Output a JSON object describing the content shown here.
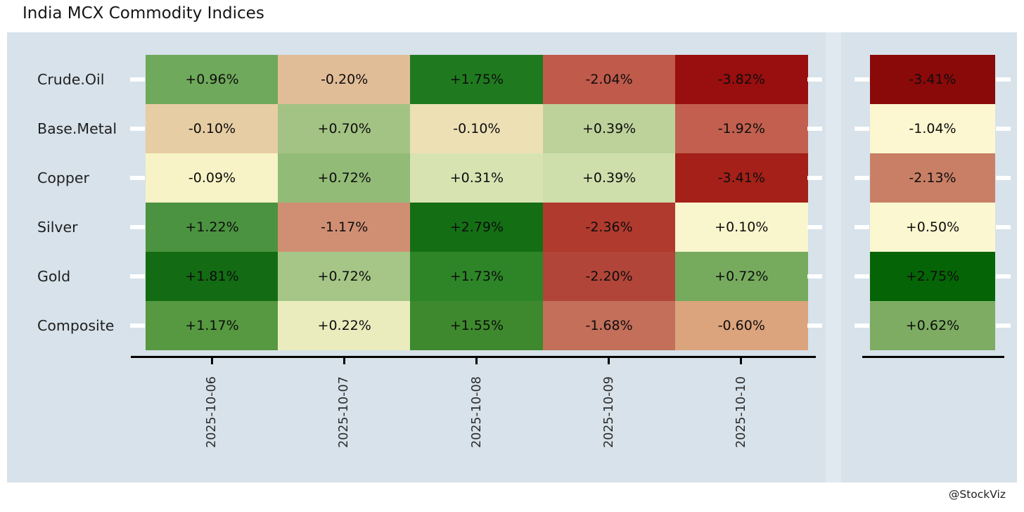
{
  "title": "India MCX Commodity Indices",
  "watermark": "@StockViz",
  "chart_data": {
    "type": "heatmap",
    "title": "India MCX Commodity Indices",
    "columns": [
      "2025-10-06",
      "2025-10-07",
      "2025-10-08",
      "2025-10-09",
      "2025-10-10"
    ],
    "legend": "none",
    "panel_background": "#d7e2ea",
    "rows": [
      {
        "label": "Crude.Oil",
        "values": [
          0.96,
          -0.2,
          1.75,
          -2.04,
          -3.82
        ],
        "cells": [
          {
            "value": "+0.96%",
            "color": "#6fa95b"
          },
          {
            "value": "-0.20%",
            "color": "#e1bd97"
          },
          {
            "value": "+1.75%",
            "color": "#1f7a1f"
          },
          {
            "value": "-2.04%",
            "color": "#c05a4b"
          },
          {
            "value": "-3.82%",
            "color": "#990e0e"
          }
        ],
        "aggregate_value": -3.41,
        "aggregate": {
          "value": "-3.41%",
          "color": "#8a0909"
        }
      },
      {
        "label": "Base.Metal",
        "values": [
          -0.1,
          0.7,
          -0.1,
          0.39,
          -1.92
        ],
        "cells": [
          {
            "value": "-0.10%",
            "color": "#e7cda3"
          },
          {
            "value": "+0.70%",
            "color": "#a3c384"
          },
          {
            "value": "-0.10%",
            "color": "#ede0b5"
          },
          {
            "value": "+0.39%",
            "color": "#bdd29b"
          },
          {
            "value": "-1.92%",
            "color": "#c25f4f"
          }
        ],
        "aggregate_value": -1.04,
        "aggregate": {
          "value": "-1.04%",
          "color": "#fcf7d0"
        }
      },
      {
        "label": "Copper",
        "values": [
          -0.09,
          0.72,
          0.31,
          0.39,
          -3.41
        ],
        "cells": [
          {
            "value": "-0.09%",
            "color": "#f7f3c6"
          },
          {
            "value": "+0.72%",
            "color": "#92bb77"
          },
          {
            "value": "+0.31%",
            "color": "#d8e3b2"
          },
          {
            "value": "+0.39%",
            "color": "#cedfac"
          },
          {
            "value": "-3.41%",
            "color": "#a42019"
          }
        ],
        "aggregate_value": -2.13,
        "aggregate": {
          "value": "-2.13%",
          "color": "#c97f66"
        }
      },
      {
        "label": "Silver",
        "values": [
          1.22,
          -1.17,
          2.79,
          -2.36,
          0.1
        ],
        "cells": [
          {
            "value": "+1.22%",
            "color": "#4b9340"
          },
          {
            "value": "-1.17%",
            "color": "#d08f73"
          },
          {
            "value": "+2.79%",
            "color": "#146f14"
          },
          {
            "value": "-2.36%",
            "color": "#b03a2e"
          },
          {
            "value": "+0.10%",
            "color": "#f9f5cc"
          }
        ],
        "aggregate_value": 0.5,
        "aggregate": {
          "value": "+0.50%",
          "color": "#fbf7d0"
        }
      },
      {
        "label": "Gold",
        "values": [
          1.81,
          0.72,
          1.73,
          -2.2,
          0.72
        ],
        "cells": [
          {
            "value": "+1.81%",
            "color": "#136c13"
          },
          {
            "value": "+0.72%",
            "color": "#a5c686"
          },
          {
            "value": "+1.73%",
            "color": "#2d8527"
          },
          {
            "value": "-2.20%",
            "color": "#b24539"
          },
          {
            "value": "+0.72%",
            "color": "#76ab5e"
          }
        ],
        "aggregate_value": 2.75,
        "aggregate": {
          "value": "+2.75%",
          "color": "#056405"
        }
      },
      {
        "label": "Composite",
        "values": [
          1.17,
          0.22,
          1.55,
          -1.68,
          -0.6
        ],
        "cells": [
          {
            "value": "+1.17%",
            "color": "#569941"
          },
          {
            "value": "+0.22%",
            "color": "#eaecbd"
          },
          {
            "value": "+1.55%",
            "color": "#3e892d"
          },
          {
            "value": "-1.68%",
            "color": "#c36f5a"
          },
          {
            "value": "-0.60%",
            "color": "#dba47d"
          }
        ],
        "aggregate_value": 0.62,
        "aggregate": {
          "value": "+0.62%",
          "color": "#7dac62"
        }
      }
    ]
  }
}
